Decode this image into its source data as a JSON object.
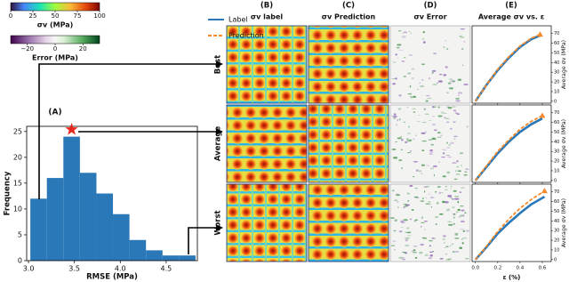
{
  "colorbars": [
    {
      "label": "σv (MPa)",
      "lim": [
        0,
        100
      ],
      "ticks": [
        0,
        25,
        50,
        75,
        100
      ]
    },
    {
      "label": "Error (MPa)",
      "lim": [
        -32,
        32
      ],
      "ticks": [
        {
          "value": -20,
          "label": "−20"
        },
        0,
        20
      ]
    }
  ],
  "panels": [
    {
      "letter": "(B)",
      "title": "σv label"
    },
    {
      "letter": "(C)",
      "title": "σv Prediction"
    },
    {
      "letter": "(D)",
      "title": "σv Error"
    },
    {
      "letter": "(E)",
      "title": "Average σv vs. ε"
    }
  ],
  "rows": [
    "Best",
    "Average",
    "Worst"
  ],
  "chart_data": [
    {
      "type": "histogram",
      "title": "(A)",
      "x_label": "RMSE (MPa)",
      "y_label": "Frequency",
      "color": "#2a78b8",
      "bins": [
        3.02,
        3.2,
        3.38,
        3.56,
        3.74,
        3.92,
        4.1,
        4.28,
        4.46,
        4.64,
        4.82
      ],
      "values": [
        12,
        16,
        24,
        17,
        13,
        9,
        4,
        2,
        1,
        1
      ],
      "star": {
        "x": 3.47,
        "y": 25.4,
        "color": "#e8251c"
      },
      "xlim": [
        2.98,
        4.84
      ],
      "xticks": [
        {
          "value": 3.0,
          "label": "3.0"
        },
        {
          "value": 3.5,
          "label": "3.5"
        },
        {
          "value": 4.0,
          "label": "4.0"
        },
        {
          "value": 4.5,
          "label": "4.5"
        }
      ],
      "ylim": [
        0,
        26
      ],
      "yticks": [
        0,
        5,
        10,
        15,
        20,
        25
      ]
    },
    {
      "type": "line",
      "y_label": "Average σv (MPa)",
      "x": [
        0,
        0.1,
        0.2,
        0.3,
        0.4,
        0.5,
        0.58
      ],
      "series": [
        {
          "name": "Label",
          "color": "#2a78b8",
          "values": [
            0,
            17,
            32,
            45,
            56,
            64,
            68
          ]
        },
        {
          "name": "Prediction",
          "color": "#f58a2a",
          "values": [
            0,
            17,
            33,
            46,
            57,
            65,
            69
          ]
        }
      ],
      "xlim": [
        -0.03,
        0.68
      ],
      "xticks": [
        {
          "value": 0.0,
          "label": "0.0"
        },
        {
          "value": 0.2,
          "label": "0.2"
        },
        {
          "value": 0.4,
          "label": "0.4"
        },
        {
          "value": 0.6,
          "label": "0.6"
        }
      ],
      "ylim": [
        -2,
        78
      ],
      "yticks": [
        0,
        10,
        20,
        30,
        40,
        50,
        60,
        70
      ]
    },
    {
      "type": "line",
      "y_label": "Average σv (MPa)",
      "x": [
        0,
        0.1,
        0.2,
        0.3,
        0.4,
        0.5,
        0.6
      ],
      "series": [
        {
          "name": "Label",
          "color": "#2a78b8",
          "values": [
            0,
            14,
            28,
            40,
            50,
            58,
            64
          ]
        },
        {
          "name": "Prediction",
          "color": "#f58a2a",
          "values": [
            0,
            15,
            30,
            42,
            53,
            61,
            67
          ]
        }
      ],
      "xlim": [
        -0.03,
        0.68
      ],
      "xticks": [
        {
          "value": 0.0,
          "label": "0.0"
        },
        {
          "value": 0.2,
          "label": "0.2"
        },
        {
          "value": 0.4,
          "label": "0.4"
        },
        {
          "value": 0.6,
          "label": "0.6"
        }
      ],
      "ylim": [
        -2,
        78
      ],
      "yticks": [
        0,
        10,
        20,
        30,
        40,
        50,
        60,
        70
      ]
    },
    {
      "type": "line",
      "y_label": "Average σv (MPa)",
      "x_label": "ε (%)",
      "x": [
        0,
        0.1,
        0.2,
        0.3,
        0.4,
        0.5,
        0.62
      ],
      "series": [
        {
          "name": "Label",
          "color": "#2a78b8",
          "values": [
            0,
            13,
            27,
            38,
            48,
            57,
            65
          ]
        },
        {
          "name": "Prediction",
          "color": "#f58a2a",
          "values": [
            0,
            14,
            29,
            42,
            53,
            62,
            71
          ]
        }
      ],
      "xlim": [
        -0.03,
        0.68
      ],
      "xticks": [
        {
          "value": 0.0,
          "label": "0.0"
        },
        {
          "value": 0.2,
          "label": "0.2"
        },
        {
          "value": 0.4,
          "label": "0.4"
        },
        {
          "value": 0.6,
          "label": "0.6"
        }
      ],
      "ylim": [
        -2,
        78
      ],
      "yticks": [
        0,
        10,
        20,
        30,
        40,
        50,
        60,
        70
      ]
    }
  ]
}
